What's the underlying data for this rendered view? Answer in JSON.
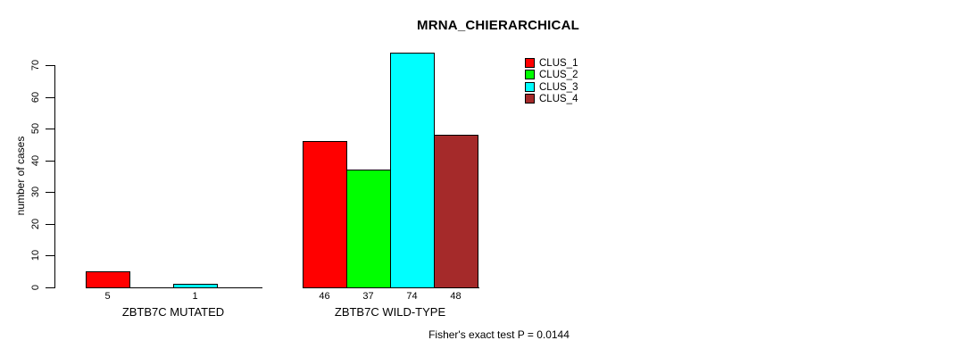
{
  "title": "MRNA_CHIERARCHICAL",
  "footer": "Fisher's exact test P = 0.0144",
  "y_axis": {
    "label": "number of cases",
    "ticks": [
      0,
      10,
      20,
      30,
      40,
      50,
      60,
      70
    ]
  },
  "legend": {
    "items": [
      {
        "label": "CLUS_1",
        "color": "#ff0000"
      },
      {
        "label": "CLUS_2",
        "color": "#00ff00"
      },
      {
        "label": "CLUS_3",
        "color": "#00ffff"
      },
      {
        "label": "CLUS_4",
        "color": "#a52a2a"
      }
    ]
  },
  "chart_data": {
    "type": "bar",
    "title": "MRNA_CHIERARCHICAL",
    "xlabel": "",
    "ylabel": "number of cases",
    "ylim": [
      0,
      70
    ],
    "yticks": [
      0,
      10,
      20,
      30,
      40,
      50,
      60,
      70
    ],
    "grid": false,
    "legend_position": "top-right-outside",
    "categories": [
      "ZBTB7C MUTATED",
      "ZBTB7C WILD-TYPE"
    ],
    "series": [
      {
        "name": "CLUS_1",
        "color": "#ff0000",
        "values": [
          5,
          46
        ]
      },
      {
        "name": "CLUS_2",
        "color": "#00ff00",
        "values": [
          0,
          37
        ]
      },
      {
        "name": "CLUS_3",
        "color": "#00ffff",
        "values": [
          1,
          74
        ]
      },
      {
        "name": "CLUS_4",
        "color": "#a52a2a",
        "values": [
          0,
          48
        ]
      }
    ],
    "bar_count_labels": {
      "ZBTB7C MUTATED": [
        "5",
        "",
        "1",
        ""
      ],
      "ZBTB7C WILD-TYPE": [
        "46",
        "37",
        "74",
        "48"
      ]
    },
    "annotation": "Fisher's exact test P = 0.0144",
    "bar_border_color": "#000000",
    "background": "#ffffff"
  }
}
